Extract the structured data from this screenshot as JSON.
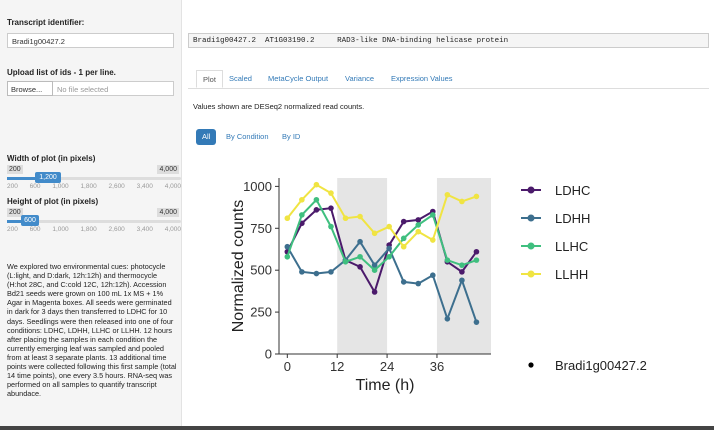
{
  "sidebar": {
    "transcript_label": "Transcript identifier:",
    "transcript_value": "Bradi1g00427.2",
    "upload_label": "Upload list of ids - 1 per line.",
    "browse_label": "Browse...",
    "no_file": "No file selected",
    "width_label": "Width of plot (in pixels)",
    "width_slider": {
      "min": "200",
      "max": "4,000",
      "value": "1,200",
      "ticks": [
        "200",
        "600",
        "1,000",
        "1,800",
        "2,600",
        "3,400",
        "4,000"
      ]
    },
    "height_label": "Height of plot (in pixels)",
    "height_slider": {
      "min": "200",
      "max": "4,000",
      "value": "600",
      "ticks": [
        "200",
        "600",
        "1,000",
        "1,800",
        "2,600",
        "3,400",
        "4,000"
      ]
    },
    "description": "We explored two environmental cues: photocycle (L:light, and D:dark, 12h:12h) and thermocycle (H:hot 28C, and C:cold 12C, 12h:12h). Accession Bd21 seeds were grown on 100 mL 1x MS + 1% Agar in Magenta boxes. All seeds were germinated in dark for 3 days then transferred to LDHC for 10 days. Seedlings were then released into one of four conditions: LDHC, LDHH, LLHC or LLHH. 12 hours after placing the samples in each condition the currently emerging leaf was sampled and pooled from at least 3 separate plants. 13 additional time points were collected following this first sample (total 14 time points), one every 3.5 hours. RNA-seq was performed on all samples to quantify transcript abundace."
  },
  "header": {
    "transcript": "Bradi1g00427.2",
    "locus": "AT1G03190.2",
    "description": "RAD3-like DNA-binding helicase protein"
  },
  "tabs": [
    "Plot",
    "Scaled",
    "MetaCycle Output",
    "Variance",
    "Expression Values"
  ],
  "note": "Values shown are DESeq2 normalized read counts.",
  "pills": [
    "All",
    "By Condition",
    "By ID"
  ],
  "colors": {
    "LDHC": "#4b1a6b",
    "LDHH": "#3d6f8e",
    "LLHC": "#3fbf7f",
    "LLHH": "#f0e442",
    "accent": "#337ab7"
  },
  "chart_data": {
    "type": "line",
    "xlabel": "Time (h)",
    "ylabel": "Normalized counts",
    "xlim": [
      -2,
      49
    ],
    "ylim": [
      0,
      1050
    ],
    "xticks": [
      0,
      12,
      24,
      36
    ],
    "yticks": [
      0,
      250,
      500,
      750,
      1000
    ],
    "shaded": [
      [
        12,
        24
      ],
      [
        36,
        49
      ]
    ],
    "x": [
      0,
      3.5,
      7,
      10.5,
      14,
      17.5,
      21,
      24.5,
      28,
      31.5,
      35,
      38.5,
      42,
      45.5
    ],
    "series": [
      {
        "name": "LDHC",
        "values": [
          610,
          780,
          860,
          870,
          560,
          520,
          370,
          650,
          790,
          800,
          850,
          550,
          490,
          610
        ]
      },
      {
        "name": "LDHH",
        "values": [
          640,
          490,
          480,
          490,
          560,
          670,
          530,
          630,
          430,
          420,
          470,
          210,
          440,
          190
        ]
      },
      {
        "name": "LLHC",
        "values": [
          580,
          830,
          920,
          760,
          550,
          580,
          500,
          580,
          690,
          770,
          830,
          560,
          530,
          560
        ]
      },
      {
        "name": "LLHH",
        "values": [
          810,
          920,
          1010,
          960,
          810,
          820,
          720,
          760,
          640,
          730,
          680,
          950,
          910,
          940
        ]
      }
    ],
    "legend": [
      "LDHC",
      "LDHH",
      "LLHC",
      "LLHH"
    ],
    "legend2": "Bradi1g00427.2"
  }
}
